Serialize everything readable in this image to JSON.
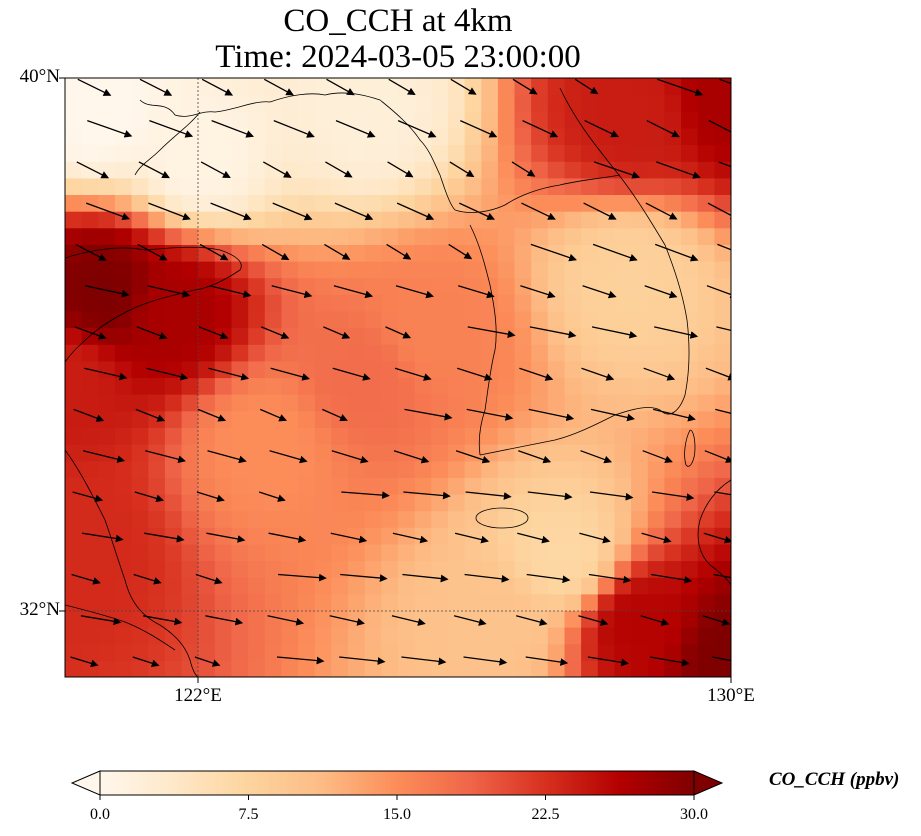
{
  "title": {
    "line1": "CO_CCH at 4km",
    "line2": "Time: 2024-03-05 23:00:00"
  },
  "axes": {
    "y_ticks": [
      "40°N",
      "32°N"
    ],
    "x_ticks": [
      "122°E",
      "130°E"
    ],
    "lat_range": [
      31,
      40
    ],
    "lon_range": [
      120,
      130
    ]
  },
  "colorbar": {
    "label": "CO_CCH (ppbv)",
    "ticks": [
      "0.0",
      "7.5",
      "15.0",
      "22.5",
      "30.0"
    ],
    "range": [
      0,
      30
    ],
    "colormap": "OrRd",
    "extend": "both",
    "stops": [
      "#fff7ec",
      "#fee8c8",
      "#fdd49e",
      "#fdbb84",
      "#fc8d59",
      "#ef6548",
      "#d7301f",
      "#b30000",
      "#7f0000"
    ]
  },
  "chart_data": {
    "type": "heatmap",
    "variable": "CO_CCH",
    "units": "ppbv",
    "level": "4km",
    "time": "2024-03-05 23:00:00",
    "lon_range": [
      120,
      130
    ],
    "lat_range": [
      31,
      40
    ],
    "value_range": [
      0,
      30
    ],
    "approx_field": [
      {
        "lon": 120.6,
        "lat": 36.8,
        "value": 30
      },
      {
        "lon": 121.6,
        "lat": 36.5,
        "value": 27
      },
      {
        "lon": 120.0,
        "lat": 35.5,
        "value": 24
      },
      {
        "lon": 130.0,
        "lat": 31.3,
        "value": 30
      },
      {
        "lon": 128.6,
        "lat": 31.8,
        "value": 26
      },
      {
        "lon": 130.0,
        "lat": 39.7,
        "value": 27
      },
      {
        "lon": 128.5,
        "lat": 39.4,
        "value": 24
      },
      {
        "lon": 120.2,
        "lat": 33.0,
        "value": 23
      },
      {
        "lon": 124.5,
        "lat": 35.5,
        "value": 18
      },
      {
        "lon": 125.5,
        "lat": 36.2,
        "value": 16
      },
      {
        "lon": 123.0,
        "lat": 34.5,
        "value": 15
      },
      {
        "lon": 120.5,
        "lat": 39.5,
        "value": 0
      },
      {
        "lon": 122.0,
        "lat": 38.8,
        "value": 1
      },
      {
        "lon": 124.5,
        "lat": 39.5,
        "value": 2
      },
      {
        "lon": 127.5,
        "lat": 32.8,
        "value": 7
      },
      {
        "lon": 128.5,
        "lat": 37.0,
        "value": 8
      },
      {
        "lon": 126.5,
        "lat": 31.8,
        "value": 10
      }
    ],
    "wind_vectors": "westerly to west-northwesterly flow across domain"
  }
}
